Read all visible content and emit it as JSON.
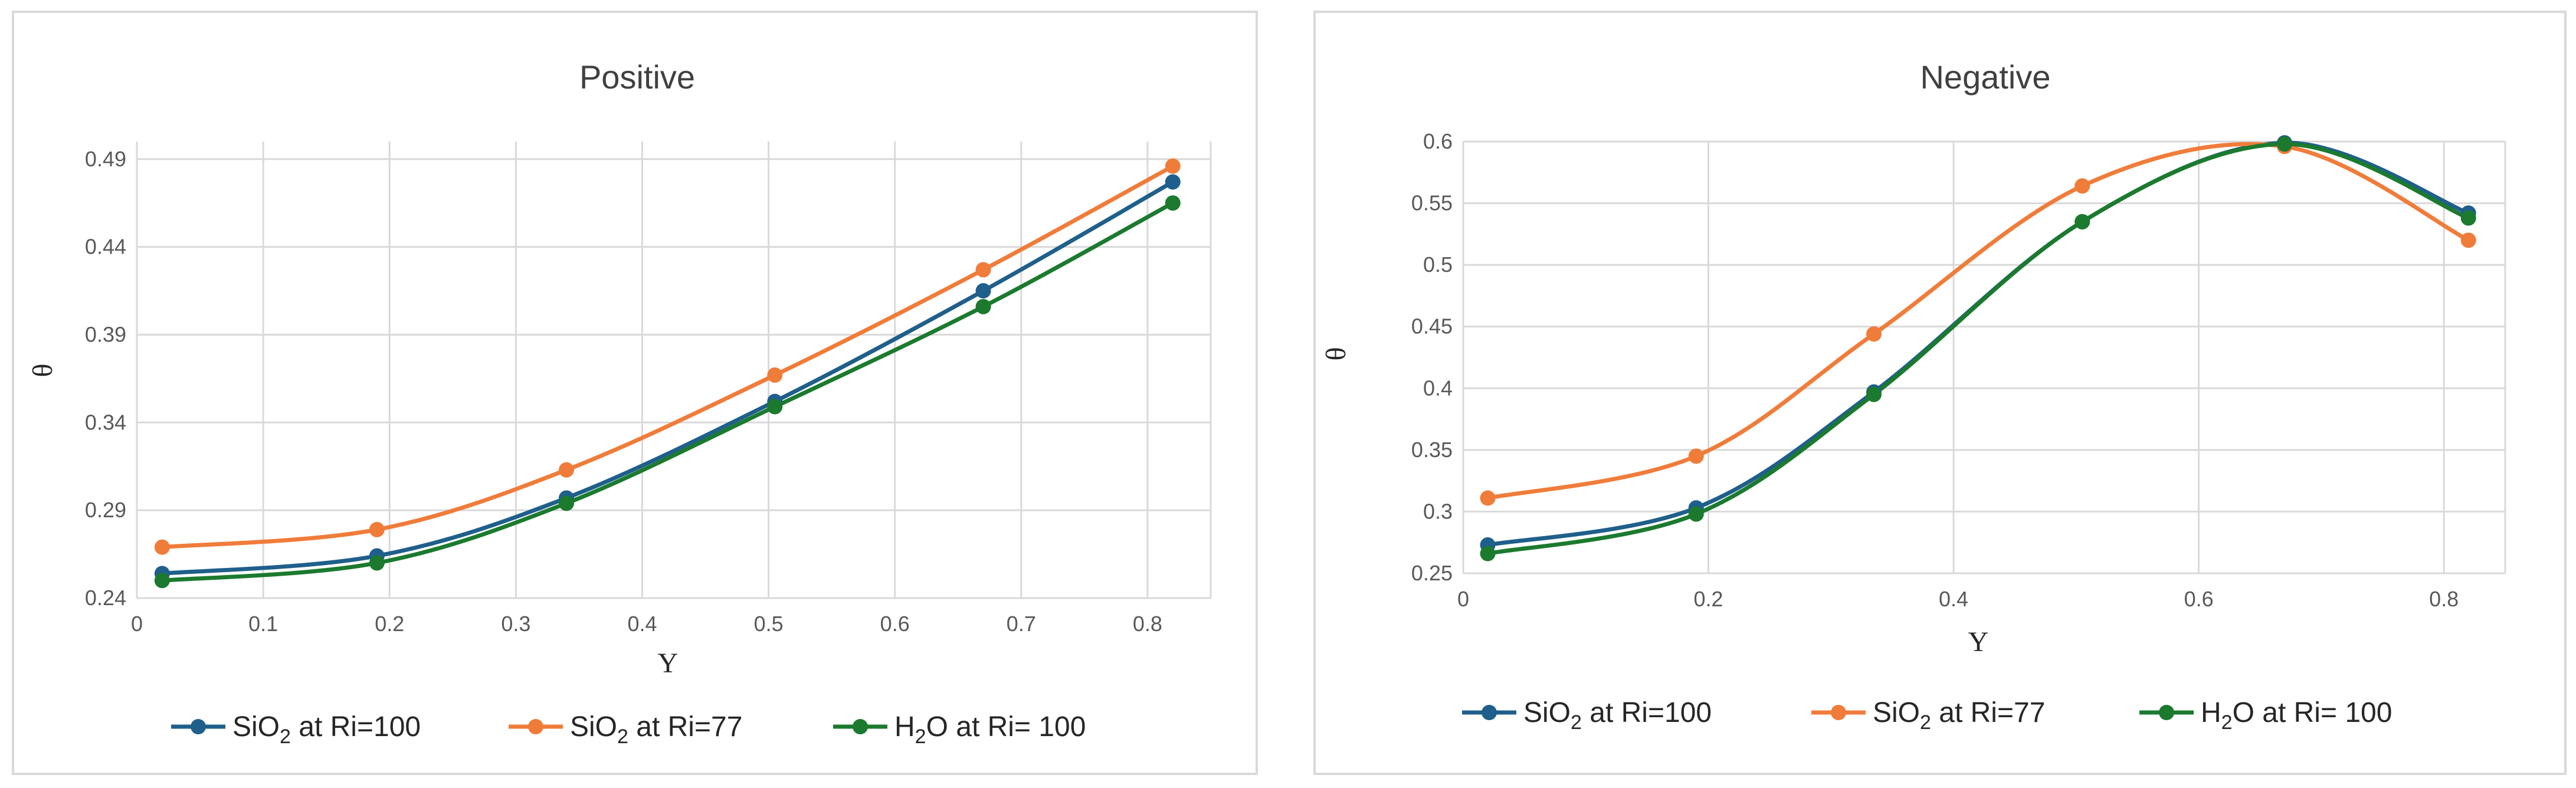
{
  "chart_data": [
    {
      "type": "line",
      "title": "Positive",
      "xlabel": "Y",
      "ylabel": "θ",
      "xlim": [
        0,
        0.85
      ],
      "ylim": [
        0.24,
        0.5
      ],
      "xticks": [
        0,
        0.1,
        0.2,
        0.3,
        0.4,
        0.5,
        0.6,
        0.7,
        0.8
      ],
      "xtick_labels": [
        "0",
        "0.1",
        "0.2",
        "0.3",
        "0.4",
        "0.5",
        "0.6",
        "0.7",
        "0.8"
      ],
      "yticks": [
        0.24,
        0.29,
        0.34,
        0.39,
        0.44,
        0.49
      ],
      "ytick_labels": [
        "0.24",
        "0.29",
        "0.34",
        "0.39",
        "0.44",
        "0.49"
      ],
      "grid": true,
      "legend_position": "bottom",
      "series": [
        {
          "name": "SiO2 at Ri=100",
          "base": "SiO",
          "sub": "2",
          "rest": " at Ri=100",
          "color": "#1f5f8b",
          "x": [
            0.02,
            0.19,
            0.34,
            0.505,
            0.67,
            0.82
          ],
          "y": [
            0.254,
            0.264,
            0.297,
            0.352,
            0.415,
            0.477
          ]
        },
        {
          "name": "SiO2 at Ri=77",
          "base": "SiO",
          "sub": "2",
          "rest": " at Ri=77",
          "color": "#f07c3a",
          "x": [
            0.02,
            0.19,
            0.34,
            0.505,
            0.67,
            0.82
          ],
          "y": [
            0.269,
            0.279,
            0.313,
            0.367,
            0.427,
            0.486
          ]
        },
        {
          "name": "H2O at Ri=100",
          "base": "H",
          "sub": "2",
          "rest": "O  at Ri= 100",
          "color": "#1b7a2e",
          "x": [
            0.02,
            0.19,
            0.34,
            0.505,
            0.67,
            0.82
          ],
          "y": [
            0.25,
            0.26,
            0.294,
            0.349,
            0.406,
            0.465
          ]
        }
      ]
    },
    {
      "type": "line",
      "title": "Negative",
      "xlabel": "Y",
      "ylabel": "θ",
      "xlim": [
        0,
        0.85
      ],
      "ylim": [
        0.25,
        0.6
      ],
      "xticks": [
        0,
        0.2,
        0.4,
        0.6,
        0.8
      ],
      "xtick_labels": [
        "0",
        "0.2",
        "0.4",
        "0.6",
        "0.8"
      ],
      "yticks": [
        0.25,
        0.3,
        0.35,
        0.4,
        0.45,
        0.5,
        0.55,
        0.6
      ],
      "ytick_labels": [
        "0.25",
        "0.3",
        "0.35",
        "0.4",
        "0.45",
        "0.5",
        "0.55",
        "0.6"
      ],
      "grid": true,
      "legend_position": "bottom",
      "series": [
        {
          "name": "SiO2 at Ri=100",
          "base": "SiO",
          "sub": "2",
          "rest": " at Ri=100",
          "color": "#1f5f8b",
          "x": [
            0.02,
            0.19,
            0.335,
            0.505,
            0.67,
            0.82
          ],
          "y": [
            0.273,
            0.303,
            0.397,
            0.535,
            0.599,
            0.542
          ]
        },
        {
          "name": "SiO2 at Ri=77",
          "base": "SiO",
          "sub": "2",
          "rest": " at Ri=77",
          "color": "#f07c3a",
          "x": [
            0.02,
            0.19,
            0.335,
            0.505,
            0.67,
            0.82
          ],
          "y": [
            0.311,
            0.345,
            0.444,
            0.564,
            0.596,
            0.52
          ]
        },
        {
          "name": "H2O at Ri=100",
          "base": "H",
          "sub": "2",
          "rest": "O  at Ri= 100",
          "color": "#1b7a2e",
          "x": [
            0.02,
            0.19,
            0.335,
            0.505,
            0.67,
            0.82
          ],
          "y": [
            0.266,
            0.298,
            0.395,
            0.535,
            0.598,
            0.538
          ]
        }
      ]
    }
  ]
}
